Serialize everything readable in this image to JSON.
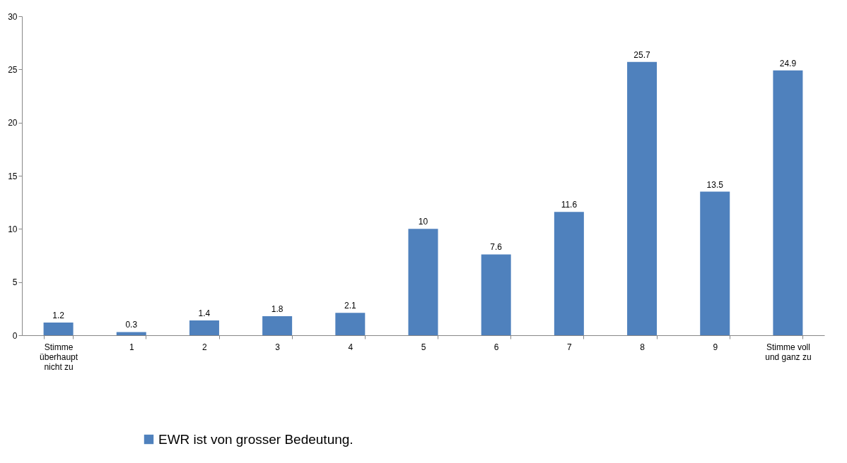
{
  "chart_data": {
    "type": "bar",
    "categories": [
      "Stimme\nüberhaupt\nnicht zu",
      "1",
      "2",
      "3",
      "4",
      "5",
      "6",
      "7",
      "8",
      "9",
      "Stimme voll\nund ganz zu"
    ],
    "series": [
      {
        "name": "EWR ist von grosser Bedeutung.",
        "color": "#4f81bd",
        "values": [
          1.2,
          0.3,
          1.4,
          1.8,
          2.1,
          10,
          7.6,
          11.6,
          25.7,
          13.5,
          24.9
        ]
      }
    ],
    "ylim": [
      0,
      30
    ],
    "yticks": [
      0,
      5,
      10,
      15,
      20,
      25,
      30
    ],
    "data_labels": true,
    "grid": false,
    "legend": "bottom"
  }
}
